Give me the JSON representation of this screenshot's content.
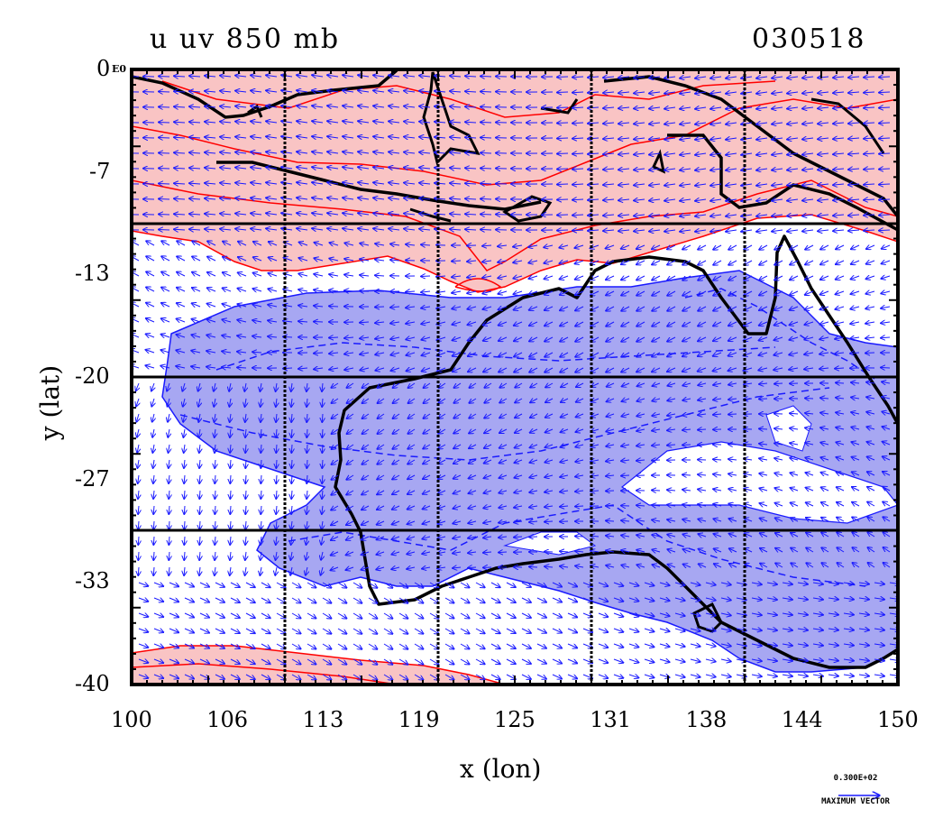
{
  "title": {
    "left": "u uv 850 mb",
    "right": "030518"
  },
  "axes": {
    "xlabel": "x (lon)",
    "ylabel": "y (lat)",
    "x_ticks": [
      "100",
      "106",
      "113",
      "119",
      "125",
      "131",
      "138",
      "144",
      "150"
    ],
    "y_ticks": [
      "0",
      "-7",
      "-13",
      "-20",
      "-27",
      "-33",
      "-40"
    ],
    "y_top_suffix": "E0",
    "xlim": [
      100,
      150
    ],
    "ylim": [
      -40,
      0
    ]
  },
  "legend": {
    "vector_value": "0.300E+02",
    "vector_label": "MAXIMUM VECTOR"
  },
  "colors": {
    "positive_fill": "#f9c4c4",
    "positive_line": "#ff0000",
    "negative_fill": "#a7a7f2",
    "negative_line": "#1a1aff",
    "vectors": "#1a1aff",
    "coast": "#000000"
  },
  "chart_data": {
    "type": "heatmap",
    "variable": "u",
    "level": "850 mb",
    "date": "030518",
    "regions": [
      {
        "sign": "positive",
        "description_lat_range": [
          -13,
          0
        ]
      },
      {
        "sign": "negative",
        "description_lat_range": [
          -38,
          -15
        ]
      },
      {
        "sign": "positive",
        "description_lat_range": [
          -40,
          -38
        ]
      }
    ],
    "grid": true
  }
}
